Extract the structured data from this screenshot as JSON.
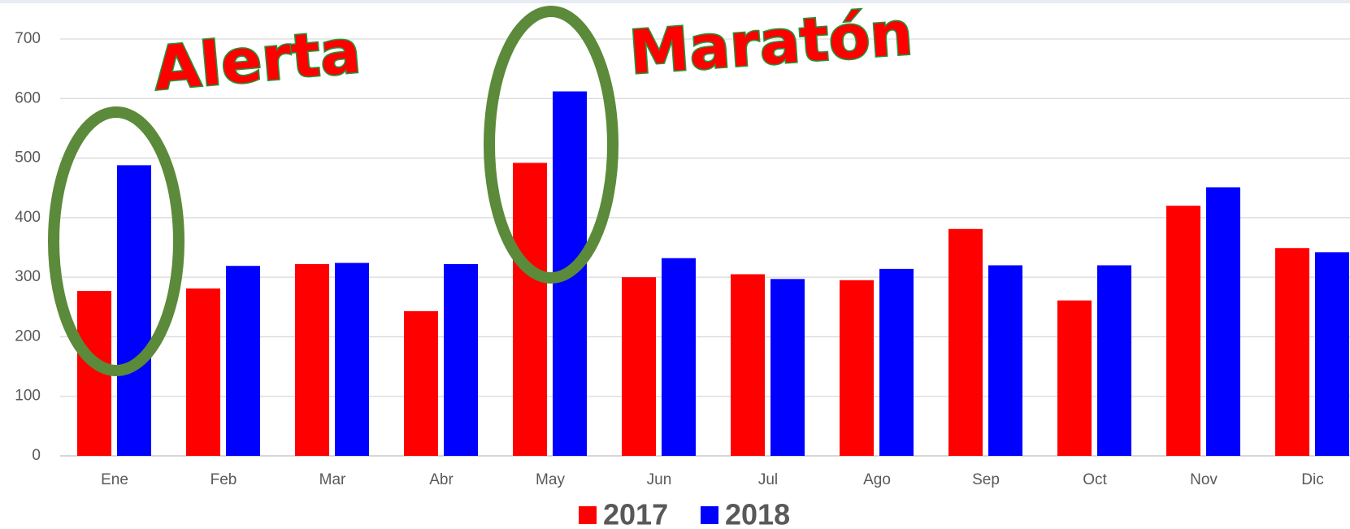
{
  "chart_data": {
    "type": "bar",
    "categories": [
      "Ene",
      "Feb",
      "Mar",
      "Abr",
      "May",
      "Jun",
      "Jul",
      "Ago",
      "Sep",
      "Oct",
      "Nov",
      "Dic"
    ],
    "series": [
      {
        "name": "2017",
        "color": "#ff0000",
        "values": [
          277,
          281,
          322,
          243,
          492,
          300,
          305,
          295,
          381,
          261,
          420,
          349
        ]
      },
      {
        "name": "2018",
        "color": "#0000ff",
        "values": [
          488,
          319,
          324,
          322,
          612,
          332,
          297,
          314,
          320,
          320,
          451,
          342
        ]
      }
    ],
    "ylim": [
      0,
      700
    ],
    "yticks": [
      0,
      100,
      200,
      300,
      400,
      500,
      600,
      700
    ],
    "grid": true,
    "legend": "bottom",
    "annotations": [
      "Alerta",
      "Maratón"
    ]
  }
}
